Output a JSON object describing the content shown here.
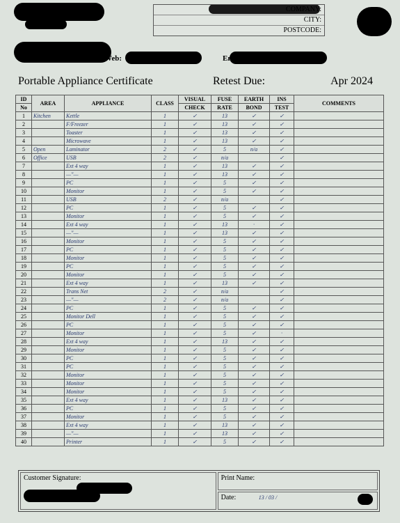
{
  "header": {
    "company_label": "COMPANY:",
    "city_label": "CITY:",
    "postcode_label": "POSTCODE:",
    "web_label": "Web:",
    "email_label": "Email:"
  },
  "title": {
    "main": "Portable Appliance Certificate",
    "retest_label": "Retest Due:",
    "retest_date": "Apr 2024"
  },
  "columns": {
    "id": "ID",
    "no": "No",
    "area": "AREA",
    "appliance": "APPLIANCE",
    "class": "CLASS",
    "visual1": "VISUAL",
    "visual2": "CHECK",
    "fuse1": "FUSE",
    "fuse2": "RATE",
    "earth1": "EARTH",
    "earth2": "BOND",
    "ins1": "INS",
    "ins2": "TEST",
    "comments": "COMMENTS"
  },
  "rows": [
    {
      "n": "1",
      "area": "Kitchen",
      "app": "Kettle",
      "cls": "1",
      "vis": "✓",
      "fuse": "13",
      "earth": "✓",
      "ins": "✓"
    },
    {
      "n": "2",
      "area": "",
      "app": "F/Freezer",
      "cls": "1",
      "vis": "✓",
      "fuse": "13",
      "earth": "✓",
      "ins": "✓"
    },
    {
      "n": "3",
      "area": "",
      "app": "Toaster",
      "cls": "1",
      "vis": "✓",
      "fuse": "13",
      "earth": "✓",
      "ins": "✓"
    },
    {
      "n": "4",
      "area": "",
      "app": "Microwave",
      "cls": "1",
      "vis": "✓",
      "fuse": "13",
      "earth": "✓",
      "ins": "✓"
    },
    {
      "n": "5",
      "area": "Open",
      "app": "Laminator",
      "cls": "2",
      "vis": "✓",
      "fuse": "5",
      "earth": "n/a",
      "ins": "✓"
    },
    {
      "n": "6",
      "area": "Office",
      "app": "USB",
      "cls": "2",
      "vis": "✓",
      "fuse": "n/a",
      "earth": "",
      "ins": "✓"
    },
    {
      "n": "7",
      "area": "",
      "app": "Ext 4 way",
      "cls": "1",
      "vis": "✓",
      "fuse": "13",
      "earth": "✓",
      "ins": "✓"
    },
    {
      "n": "8",
      "area": "",
      "app": "—\"—",
      "cls": "1",
      "vis": "✓",
      "fuse": "13",
      "earth": "✓",
      "ins": "✓"
    },
    {
      "n": "9",
      "area": "",
      "app": "PC",
      "cls": "1",
      "vis": "✓",
      "fuse": "5",
      "earth": "✓",
      "ins": "✓"
    },
    {
      "n": "10",
      "area": "",
      "app": "Monitor",
      "cls": "1",
      "vis": "✓",
      "fuse": "5",
      "earth": "✓",
      "ins": "✓"
    },
    {
      "n": "11",
      "area": "",
      "app": "USB",
      "cls": "2",
      "vis": "✓",
      "fuse": "n/a",
      "earth": "",
      "ins": "✓"
    },
    {
      "n": "12",
      "area": "",
      "app": "PC",
      "cls": "1",
      "vis": "✓",
      "fuse": "5",
      "earth": "✓",
      "ins": "✓"
    },
    {
      "n": "13",
      "area": "",
      "app": "Monitor",
      "cls": "1",
      "vis": "✓",
      "fuse": "5",
      "earth": "✓",
      "ins": "✓"
    },
    {
      "n": "14",
      "area": "",
      "app": "Ext 4 way",
      "cls": "1",
      "vis": "✓",
      "fuse": "13",
      "earth": "·",
      "ins": "✓"
    },
    {
      "n": "15",
      "area": "",
      "app": "—\"—",
      "cls": "1",
      "vis": "✓",
      "fuse": "13",
      "earth": "✓",
      "ins": "✓"
    },
    {
      "n": "16",
      "area": "",
      "app": "Monitor",
      "cls": "1",
      "vis": "✓",
      "fuse": "5",
      "earth": "✓",
      "ins": "✓"
    },
    {
      "n": "17",
      "area": "",
      "app": "PC",
      "cls": "1",
      "vis": "✓",
      "fuse": "5",
      "earth": "✓",
      "ins": "✓"
    },
    {
      "n": "18",
      "area": "",
      "app": "Monitor",
      "cls": "1",
      "vis": "✓",
      "fuse": "5",
      "earth": "✓",
      "ins": "✓"
    },
    {
      "n": "19",
      "area": "",
      "app": "PC",
      "cls": "1",
      "vis": "✓",
      "fuse": "5",
      "earth": "✓",
      "ins": "✓"
    },
    {
      "n": "20",
      "area": "",
      "app": "Monitor",
      "cls": "1",
      "vis": "✓",
      "fuse": "5",
      "earth": "✓",
      "ins": "✓"
    },
    {
      "n": "21",
      "area": "",
      "app": "Ext 4 way",
      "cls": "1",
      "vis": "✓",
      "fuse": "13",
      "earth": "✓",
      "ins": "✓"
    },
    {
      "n": "22",
      "area": "",
      "app": "Trans Net",
      "cls": "2",
      "vis": "✓",
      "fuse": "n/a",
      "earth": "",
      "ins": "✓"
    },
    {
      "n": "23",
      "area": "",
      "app": "—\"—",
      "cls": "2",
      "vis": "✓",
      "fuse": "n/a",
      "earth": "",
      "ins": "✓"
    },
    {
      "n": "24",
      "area": "",
      "app": "PC",
      "cls": "1",
      "vis": "✓",
      "fuse": "5",
      "earth": "✓",
      "ins": "✓"
    },
    {
      "n": "25",
      "area": "",
      "app": "Monitor Dell",
      "cls": "1",
      "vis": "✓",
      "fuse": "5",
      "earth": "✓",
      "ins": "✓"
    },
    {
      "n": "26",
      "area": "",
      "app": "PC",
      "cls": "1",
      "vis": "✓",
      "fuse": "5",
      "earth": "✓",
      "ins": "✓"
    },
    {
      "n": "27",
      "area": "",
      "app": "Monitor",
      "cls": "1",
      "vis": "✓",
      "fuse": "5",
      "earth": "✓",
      "ins": "·"
    },
    {
      "n": "28",
      "area": "",
      "app": "Ext 4 way",
      "cls": "1",
      "vis": "✓",
      "fuse": "13",
      "earth": "✓",
      "ins": "✓"
    },
    {
      "n": "29",
      "area": "",
      "app": "Monitor",
      "cls": "1",
      "vis": "✓",
      "fuse": "5",
      "earth": "✓",
      "ins": "✓"
    },
    {
      "n": "30",
      "area": "",
      "app": "PC",
      "cls": "1",
      "vis": "✓",
      "fuse": "5",
      "earth": "✓",
      "ins": "✓"
    },
    {
      "n": "31",
      "area": "",
      "app": "PC",
      "cls": "1",
      "vis": "✓",
      "fuse": "5",
      "earth": "✓",
      "ins": "✓"
    },
    {
      "n": "32",
      "area": "",
      "app": "Monitor",
      "cls": "1",
      "vis": "✓",
      "fuse": "5",
      "earth": "✓",
      "ins": "✓"
    },
    {
      "n": "33",
      "area": "",
      "app": "Monitor",
      "cls": "1",
      "vis": "✓",
      "fuse": "5",
      "earth": "✓",
      "ins": "✓"
    },
    {
      "n": "34",
      "area": "",
      "app": "Monitor",
      "cls": "1",
      "vis": "✓",
      "fuse": "5",
      "earth": "✓",
      "ins": "✓"
    },
    {
      "n": "35",
      "area": "",
      "app": "Ext 4 way",
      "cls": "1",
      "vis": "✓",
      "fuse": "13",
      "earth": "✓",
      "ins": "✓"
    },
    {
      "n": "36",
      "area": "",
      "app": "PC",
      "cls": "1",
      "vis": "✓",
      "fuse": "5",
      "earth": "✓",
      "ins": "✓"
    },
    {
      "n": "37",
      "area": "",
      "app": "Monitor",
      "cls": "1",
      "vis": "✓",
      "fuse": "5",
      "earth": "✓",
      "ins": "✓"
    },
    {
      "n": "38",
      "area": "",
      "app": "Ext 4 way",
      "cls": "1",
      "vis": "✓",
      "fuse": "13",
      "earth": "✓",
      "ins": "✓"
    },
    {
      "n": "39",
      "area": "",
      "app": "—\"—",
      "cls": "1",
      "vis": "✓",
      "fuse": "13",
      "earth": "✓",
      "ins": "✓"
    },
    {
      "n": "40",
      "area": "",
      "app": "Printer",
      "cls": "1",
      "vis": "✓",
      "fuse": "5",
      "earth": "✓",
      "ins": "✓"
    }
  ],
  "footer": {
    "sig_label": "Customer Signature:",
    "print_label": "Print Name:",
    "date_label": "Date:",
    "date_value": "13 / 03 /"
  },
  "style": {
    "page_bg": "#dde3dd",
    "ink": "#2a3a70",
    "border": "#555"
  }
}
